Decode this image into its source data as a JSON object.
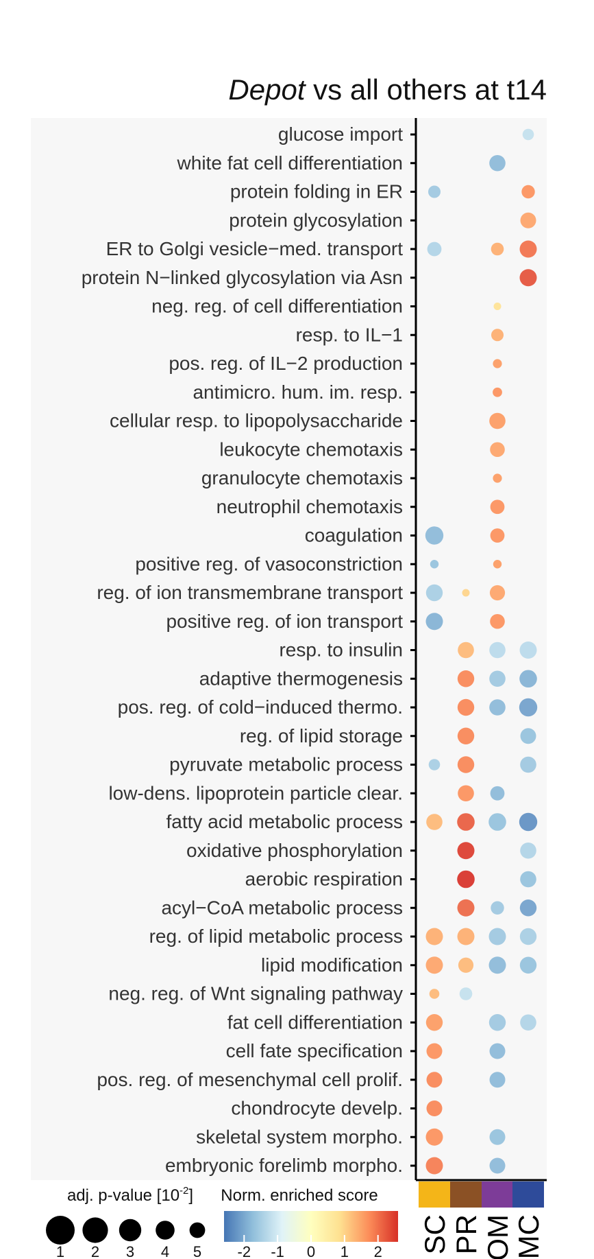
{
  "chart_data": {
    "type": "dotplot",
    "title_italic": "Depot",
    "title_rest": " vs all others at t14",
    "columns": [
      {
        "label": "SC",
        "color": "#F4B518"
      },
      {
        "label": "PR",
        "color": "#8B5125"
      },
      {
        "label": "OM",
        "color": "#7D3C98"
      },
      {
        "label": "MC",
        "color": "#2E4B9A"
      }
    ],
    "rows": [
      {
        "term": "glucose import",
        "points": [
          {
            "col": 3,
            "score": -1.2,
            "p": 4.2
          }
        ]
      },
      {
        "term": "white fat cell differentiation",
        "points": [
          {
            "col": 2,
            "score": -1.8,
            "p": 3.2
          }
        ]
      },
      {
        "term": "protein folding in ER",
        "points": [
          {
            "col": 0,
            "score": -1.6,
            "p": 4.0
          },
          {
            "col": 3,
            "score": 1.7,
            "p": 3.8
          }
        ]
      },
      {
        "term": "protein glycosylation",
        "points": [
          {
            "col": 3,
            "score": 1.5,
            "p": 3.3
          }
        ]
      },
      {
        "term": "ER to Golgi vesicle−med. transport",
        "points": [
          {
            "col": 0,
            "score": -1.4,
            "p": 3.6
          },
          {
            "col": 2,
            "score": 1.4,
            "p": 3.9
          },
          {
            "col": 3,
            "score": 2.0,
            "p": 3.0
          }
        ]
      },
      {
        "term": "protein N−linked glycosylation via Asn",
        "points": [
          {
            "col": 3,
            "score": 2.3,
            "p": 3.0
          }
        ]
      },
      {
        "term": "neg. reg. of cell differentiation",
        "points": [
          {
            "col": 2,
            "score": 0.8,
            "p": 5.0
          }
        ]
      },
      {
        "term": "resp. to IL−1",
        "points": [
          {
            "col": 2,
            "score": 1.4,
            "p": 4.0
          }
        ]
      },
      {
        "term": "pos. reg. of IL−2 production",
        "points": [
          {
            "col": 2,
            "score": 1.6,
            "p": 4.7
          }
        ]
      },
      {
        "term": "antimicro. hum. im. resp.",
        "points": [
          {
            "col": 2,
            "score": 1.7,
            "p": 4.6
          }
        ]
      },
      {
        "term": "cellular resp. to lipopolysaccharide",
        "points": [
          {
            "col": 2,
            "score": 1.6,
            "p": 3.2
          }
        ]
      },
      {
        "term": "leukocyte chemotaxis",
        "points": [
          {
            "col": 2,
            "score": 1.5,
            "p": 3.5
          }
        ]
      },
      {
        "term": "granulocyte chemotaxis",
        "points": [
          {
            "col": 2,
            "score": 1.6,
            "p": 4.7
          }
        ]
      },
      {
        "term": "neutrophil chemotaxis",
        "points": [
          {
            "col": 2,
            "score": 1.7,
            "p": 3.6
          }
        ]
      },
      {
        "term": "coagulation",
        "points": [
          {
            "col": 0,
            "score": -1.8,
            "p": 2.8
          },
          {
            "col": 2,
            "score": 1.7,
            "p": 3.6
          }
        ]
      },
      {
        "term": "positive reg. of vasoconstriction",
        "points": [
          {
            "col": 0,
            "score": -1.7,
            "p": 4.8
          },
          {
            "col": 2,
            "score": 1.6,
            "p": 4.8
          }
        ]
      },
      {
        "term": "reg. of ion transmembrane transport",
        "points": [
          {
            "col": 0,
            "score": -1.5,
            "p": 3.1
          },
          {
            "col": 1,
            "score": 1.0,
            "p": 5.0
          },
          {
            "col": 2,
            "score": 1.5,
            "p": 3.4
          }
        ]
      },
      {
        "term": "positive reg. of ion transport",
        "points": [
          {
            "col": 0,
            "score": -1.9,
            "p": 3.0
          },
          {
            "col": 2,
            "score": 1.7,
            "p": 3.5
          }
        ]
      },
      {
        "term": "resp. to insulin",
        "points": [
          {
            "col": 1,
            "score": 1.3,
            "p": 3.2
          },
          {
            "col": 2,
            "score": -1.3,
            "p": 3.2
          },
          {
            "col": 3,
            "score": -1.3,
            "p": 3.0
          }
        ]
      },
      {
        "term": "adaptive thermogenesis",
        "points": [
          {
            "col": 1,
            "score": 1.8,
            "p": 3.1
          },
          {
            "col": 2,
            "score": -1.6,
            "p": 3.2
          },
          {
            "col": 3,
            "score": -1.9,
            "p": 2.9
          }
        ]
      },
      {
        "term": "pos. reg. of cold−induced thermo.",
        "points": [
          {
            "col": 1,
            "score": 1.8,
            "p": 3.1
          },
          {
            "col": 2,
            "score": -1.8,
            "p": 3.2
          },
          {
            "col": 3,
            "score": -2.1,
            "p": 2.8
          }
        ]
      },
      {
        "term": "reg. of lipid storage",
        "points": [
          {
            "col": 1,
            "score": 1.8,
            "p": 3.1
          },
          {
            "col": 3,
            "score": -1.7,
            "p": 3.3
          }
        ]
      },
      {
        "term": "pyruvate metabolic process",
        "points": [
          {
            "col": 0,
            "score": -1.5,
            "p": 4.2
          },
          {
            "col": 1,
            "score": 1.8,
            "p": 3.1
          },
          {
            "col": 3,
            "score": -1.6,
            "p": 3.2
          }
        ]
      },
      {
        "term": "low-dens. lipoprotein particle clear.",
        "points": [
          {
            "col": 1,
            "score": 1.7,
            "p": 3.2
          },
          {
            "col": 2,
            "score": -1.8,
            "p": 3.6
          }
        ]
      },
      {
        "term": "fatty acid metabolic process",
        "points": [
          {
            "col": 0,
            "score": 1.3,
            "p": 3.2
          },
          {
            "col": 1,
            "score": 2.2,
            "p": 2.9
          },
          {
            "col": 2,
            "score": -1.7,
            "p": 2.9
          },
          {
            "col": 3,
            "score": -2.3,
            "p": 2.8
          }
        ]
      },
      {
        "term": "oxidative phosphorylation",
        "points": [
          {
            "col": 1,
            "score": 2.5,
            "p": 3.0
          },
          {
            "col": 3,
            "score": -1.4,
            "p": 3.2
          }
        ]
      },
      {
        "term": "aerobic respiration",
        "points": [
          {
            "col": 1,
            "score": 2.6,
            "p": 2.9
          },
          {
            "col": 3,
            "score": -1.7,
            "p": 3.2
          }
        ]
      },
      {
        "term": "acyl−CoA metabolic process",
        "points": [
          {
            "col": 1,
            "score": 2.1,
            "p": 3.0
          },
          {
            "col": 2,
            "score": -1.6,
            "p": 3.8
          },
          {
            "col": 3,
            "score": -2.1,
            "p": 3.1
          }
        ]
      },
      {
        "term": "reg. of lipid metabolic process",
        "points": [
          {
            "col": 0,
            "score": 1.4,
            "p": 3.0
          },
          {
            "col": 1,
            "score": 1.4,
            "p": 3.0
          },
          {
            "col": 2,
            "score": -1.6,
            "p": 3.0
          },
          {
            "col": 3,
            "score": -1.5,
            "p": 3.1
          }
        ]
      },
      {
        "term": "lipid modification",
        "points": [
          {
            "col": 0,
            "score": 1.5,
            "p": 3.0
          },
          {
            "col": 1,
            "score": 1.3,
            "p": 3.4
          },
          {
            "col": 2,
            "score": -1.8,
            "p": 3.0
          },
          {
            "col": 3,
            "score": -1.7,
            "p": 3.1
          }
        ]
      },
      {
        "term": "neg. reg. of Wnt signaling pathway",
        "points": [
          {
            "col": 0,
            "score": 1.3,
            "p": 4.5
          },
          {
            "col": 1,
            "score": -1.2,
            "p": 3.9
          }
        ]
      },
      {
        "term": "fat cell differentiation",
        "points": [
          {
            "col": 0,
            "score": 1.6,
            "p": 3.1
          },
          {
            "col": 2,
            "score": -1.6,
            "p": 3.1
          },
          {
            "col": 3,
            "score": -1.4,
            "p": 3.2
          }
        ]
      },
      {
        "term": "cell fate specification",
        "points": [
          {
            "col": 0,
            "score": 1.7,
            "p": 3.3
          },
          {
            "col": 2,
            "score": -1.8,
            "p": 3.3
          }
        ]
      },
      {
        "term": "pos. reg. of mesenchymal cell prolif.",
        "points": [
          {
            "col": 0,
            "score": 1.8,
            "p": 3.3
          },
          {
            "col": 2,
            "score": -1.8,
            "p": 3.3
          }
        ]
      },
      {
        "term": "chondrocyte develp.",
        "points": [
          {
            "col": 0,
            "score": 1.8,
            "p": 3.3
          }
        ]
      },
      {
        "term": "skeletal system morpho.",
        "points": [
          {
            "col": 0,
            "score": 1.7,
            "p": 3.0
          },
          {
            "col": 2,
            "score": -1.7,
            "p": 3.3
          }
        ]
      },
      {
        "term": "embryonic forelimb morpho.",
        "points": [
          {
            "col": 0,
            "score": 1.9,
            "p": 3.0
          },
          {
            "col": 2,
            "score": -1.8,
            "p": 3.3
          }
        ]
      }
    ],
    "size_legend": {
      "title_main": "adj. p-value [10",
      "title_sup": "-2",
      "title_end": "]",
      "values": [
        "1",
        "2",
        "3",
        "4",
        "5"
      ]
    },
    "color_legend": {
      "title": "Norm. enriched score",
      "range": [
        -2.6,
        2.6
      ],
      "ticks": [
        "-2",
        "-1",
        "0",
        "1",
        "2"
      ],
      "colors": [
        "#4575B4",
        "#91BFDB",
        "#E0F3F8",
        "#FFFFBF",
        "#FEE090",
        "#FC8D59",
        "#D73027"
      ]
    }
  }
}
